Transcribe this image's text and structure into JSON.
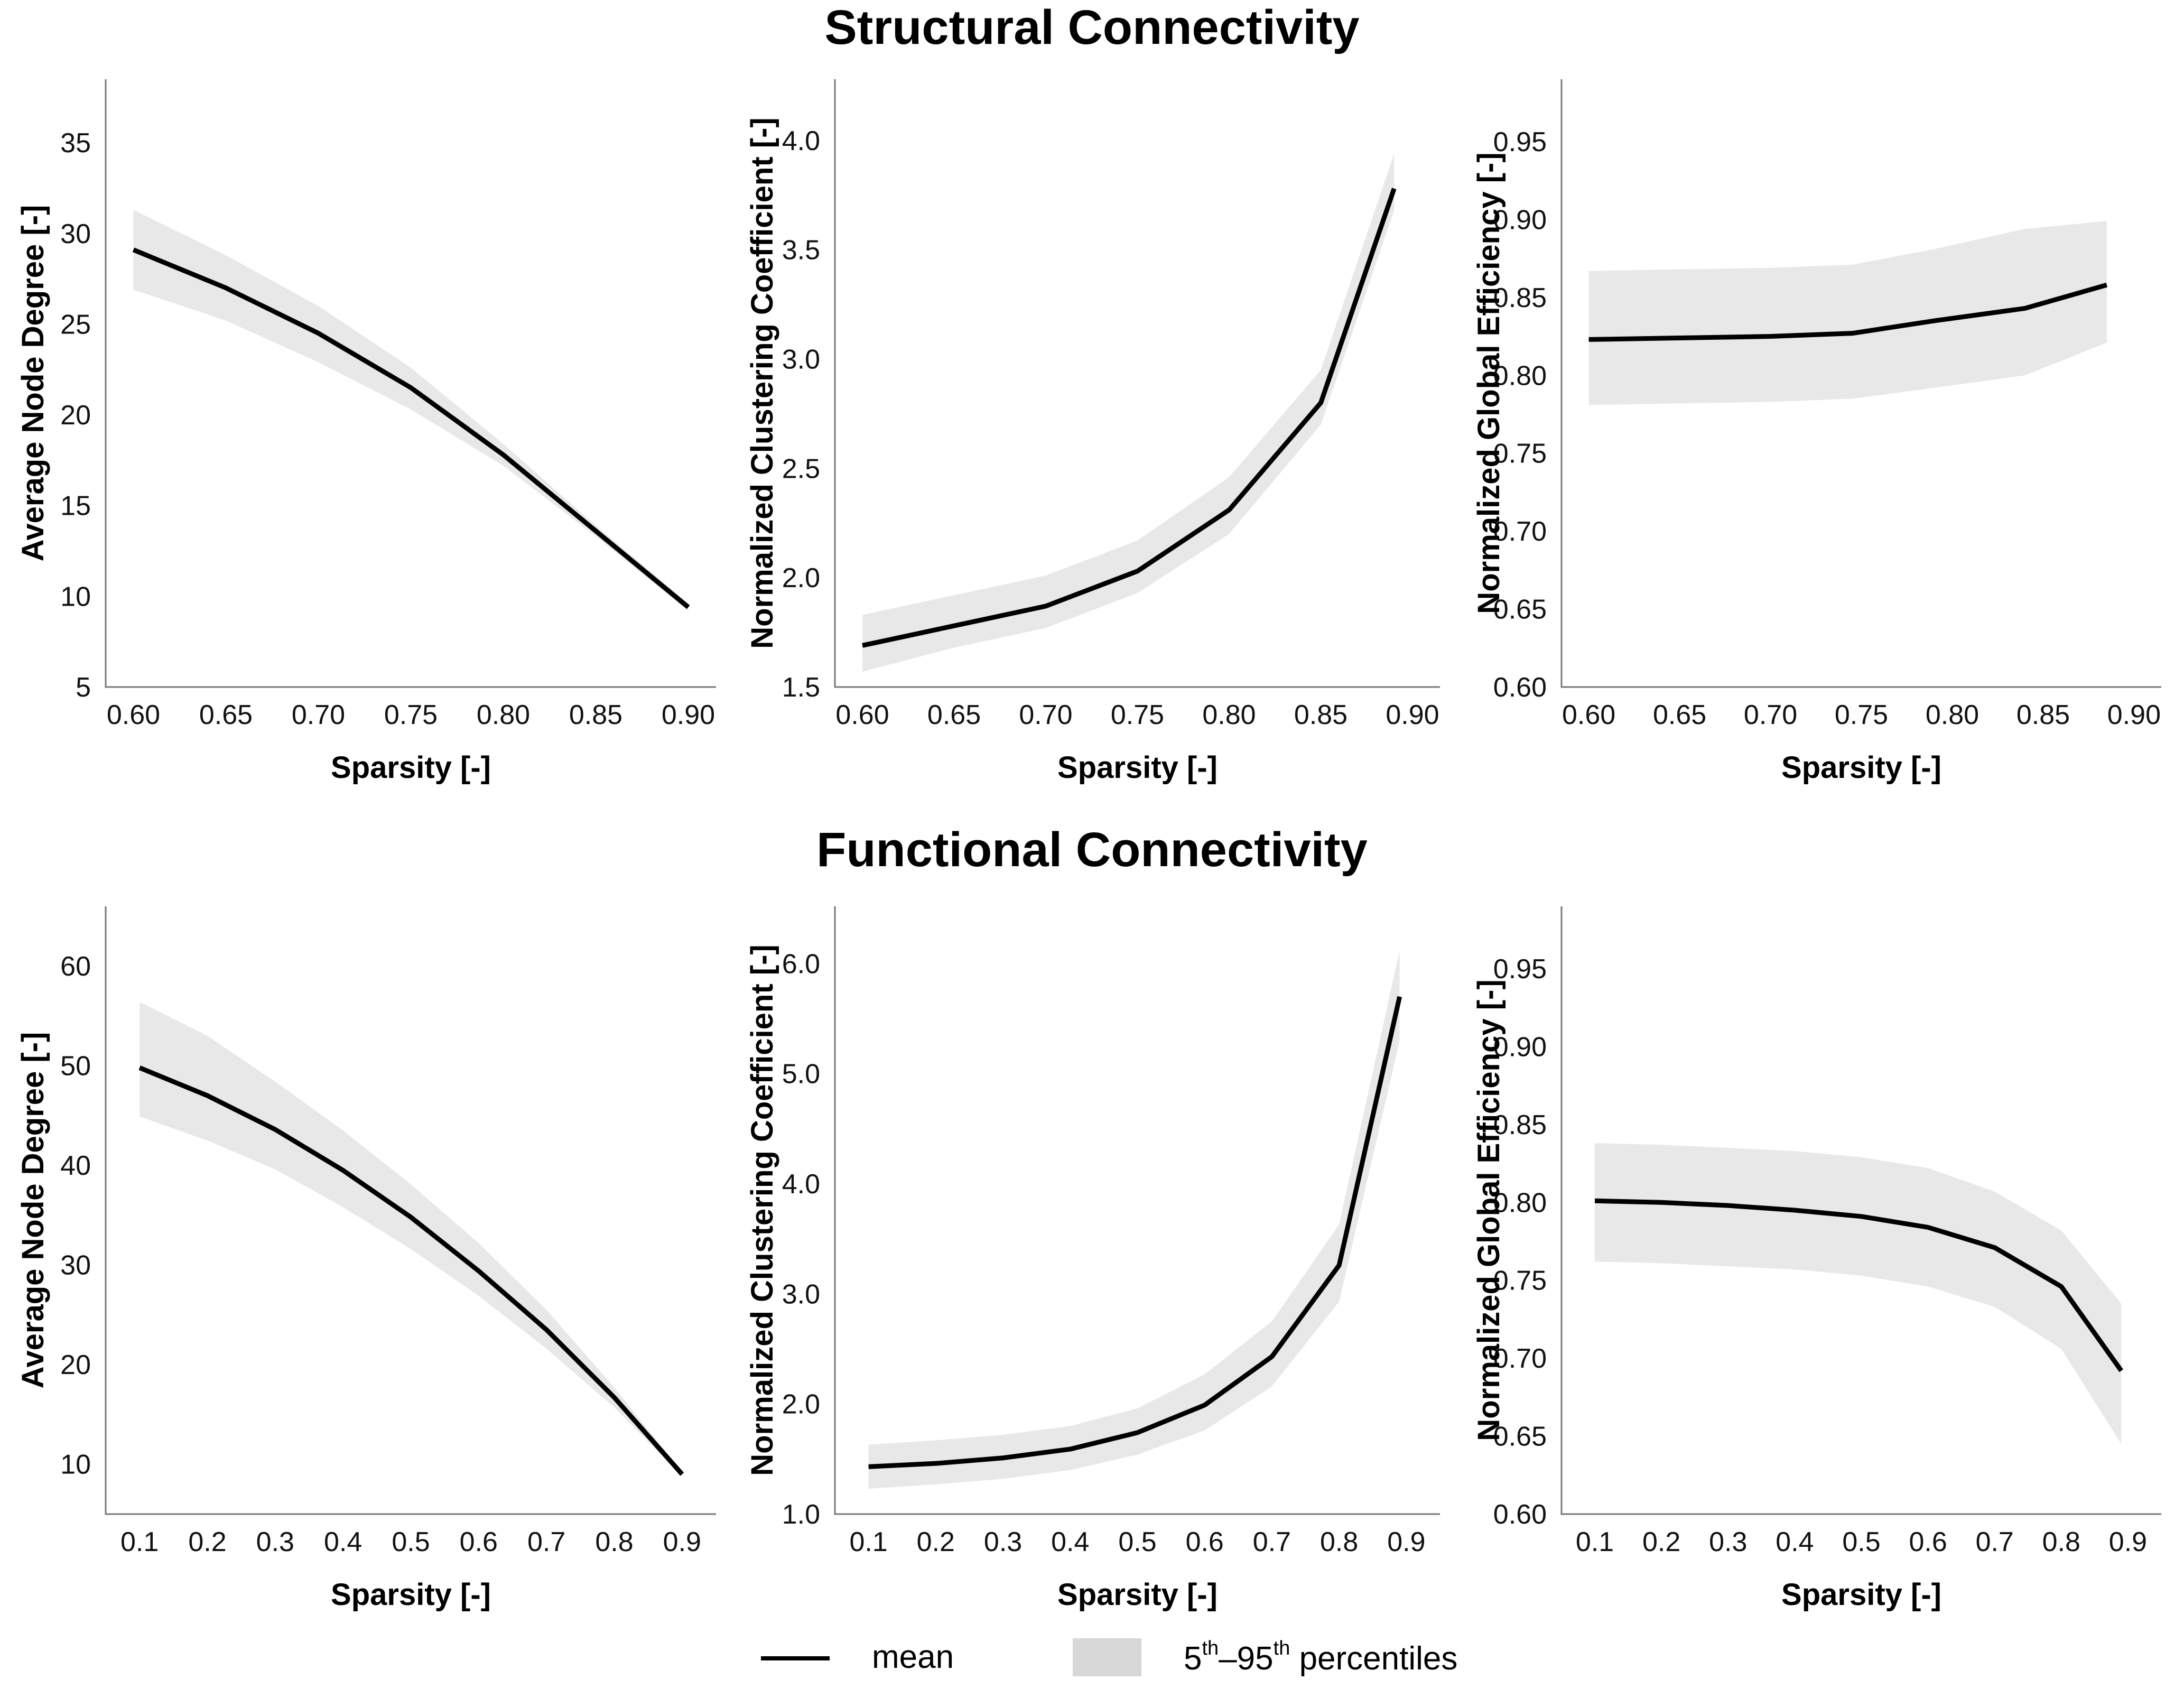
{
  "titles": {
    "structural": "Structural Connectivity",
    "functional": "Functional Connectivity"
  },
  "colors": {
    "mean_line": "#000000",
    "band_fill": "#e8e8e8",
    "axis": "#777777"
  },
  "legend": {
    "mean_label": "mean",
    "band_sup1": "th",
    "band_mid": "5",
    "band_dash": "–95",
    "band_sup2": "th",
    "band_tail": " percentiles"
  },
  "chart_data": [
    {
      "type": "area",
      "group": "structural",
      "xlabel": "Sparsity [-]",
      "ylabel": "Average Node Degree [-]",
      "xlim": [
        0.585,
        0.915
      ],
      "ylim": [
        5,
        38.5
      ],
      "xticks": [
        "0.60",
        "0.65",
        "0.70",
        "0.75",
        "0.80",
        "0.85",
        "0.90"
      ],
      "yticks": [
        "5",
        "10",
        "15",
        "20",
        "25",
        "30",
        "35"
      ],
      "x": [
        0.6,
        0.65,
        0.7,
        0.75,
        0.8,
        0.85,
        0.9
      ],
      "mean": [
        29.1,
        27.0,
        24.5,
        21.5,
        17.8,
        13.6,
        9.4
      ],
      "lower": [
        26.9,
        25.2,
        22.9,
        20.3,
        17.2,
        13.3,
        9.2
      ],
      "upper": [
        31.3,
        28.8,
        26.0,
        22.6,
        18.4,
        13.9,
        9.6
      ]
    },
    {
      "type": "area",
      "group": "structural",
      "xlabel": "Sparsity [-]",
      "ylabel": "Normalized Clustering Coefficient [-]",
      "xlim": [
        0.585,
        0.915
      ],
      "ylim": [
        1.5,
        4.28
      ],
      "xticks": [
        "0.60",
        "0.65",
        "0.70",
        "0.75",
        "0.80",
        "0.85",
        "0.90"
      ],
      "yticks": [
        "1.5",
        "2.0",
        "2.5",
        "3.0",
        "3.5",
        "4.0"
      ],
      "x": [
        0.6,
        0.65,
        0.7,
        0.75,
        0.8,
        0.85,
        0.89
      ],
      "mean": [
        1.69,
        1.78,
        1.87,
        2.03,
        2.31,
        2.8,
        3.78
      ],
      "lower": [
        1.57,
        1.68,
        1.77,
        1.93,
        2.2,
        2.7,
        3.68
      ],
      "upper": [
        1.83,
        1.92,
        2.01,
        2.17,
        2.46,
        2.95,
        3.94
      ]
    },
    {
      "type": "area",
      "group": "structural",
      "xlabel": "Sparsity [-]",
      "ylabel": "Normalized Global Efficiency [-]",
      "xlim": [
        0.585,
        0.915
      ],
      "ylim": [
        0.6,
        0.99
      ],
      "xticks": [
        "0.60",
        "0.65",
        "0.70",
        "0.75",
        "0.80",
        "0.85",
        "0.90"
      ],
      "yticks": [
        "0.60",
        "0.65",
        "0.70",
        "0.75",
        "0.80",
        "0.85",
        "0.90",
        "0.95"
      ],
      "x": [
        0.6,
        0.65,
        0.7,
        0.745,
        0.79,
        0.84,
        0.885
      ],
      "mean": [
        0.823,
        0.824,
        0.825,
        0.827,
        0.835,
        0.843,
        0.858
      ],
      "lower": [
        0.781,
        0.782,
        0.783,
        0.785,
        0.792,
        0.8,
        0.821
      ],
      "upper": [
        0.867,
        0.868,
        0.869,
        0.871,
        0.881,
        0.894,
        0.899
      ]
    },
    {
      "type": "area",
      "group": "functional",
      "xlabel": "Sparsity [-]",
      "ylabel": "Average Node Degree [-]",
      "xlim": [
        0.05,
        0.95
      ],
      "ylim": [
        5,
        66
      ],
      "xticks": [
        "0.1",
        "0.2",
        "0.3",
        "0.4",
        "0.5",
        "0.6",
        "0.7",
        "0.8",
        "0.9"
      ],
      "yticks": [
        "10",
        "20",
        "30",
        "40",
        "50",
        "60"
      ],
      "x": [
        0.1,
        0.2,
        0.3,
        0.4,
        0.5,
        0.6,
        0.7,
        0.8,
        0.9
      ],
      "mean": [
        49.8,
        47.0,
        43.6,
        39.5,
        34.8,
        29.4,
        23.5,
        16.7,
        9.0
      ],
      "lower": [
        44.9,
        42.5,
        39.6,
        35.8,
        31.6,
        26.9,
        21.6,
        15.7,
        8.8
      ],
      "upper": [
        56.4,
        53.0,
        48.4,
        43.5,
        38.1,
        32.2,
        25.5,
        17.7,
        9.2
      ]
    },
    {
      "type": "area",
      "group": "functional",
      "xlabel": "Sparsity [-]",
      "ylabel": "Normalized Clustering Coefficient [-]",
      "xlim": [
        0.05,
        0.95
      ],
      "ylim": [
        1.0,
        6.52
      ],
      "xticks": [
        "0.1",
        "0.2",
        "0.3",
        "0.4",
        "0.5",
        "0.6",
        "0.7",
        "0.8",
        "0.9"
      ],
      "yticks": [
        "1.0",
        "2.0",
        "3.0",
        "4.0",
        "5.0",
        "6.0"
      ],
      "x": [
        0.1,
        0.2,
        0.3,
        0.4,
        0.5,
        0.6,
        0.7,
        0.8,
        0.89
      ],
      "mean": [
        1.43,
        1.46,
        1.51,
        1.59,
        1.74,
        1.99,
        2.43,
        3.26,
        5.7
      ],
      "lower": [
        1.23,
        1.27,
        1.32,
        1.4,
        1.54,
        1.76,
        2.16,
        2.93,
        5.3
      ],
      "upper": [
        1.63,
        1.67,
        1.72,
        1.8,
        1.96,
        2.27,
        2.75,
        3.63,
        6.12
      ]
    },
    {
      "type": "area",
      "group": "functional",
      "xlabel": "Sparsity [-]",
      "ylabel": "Normalized Global Efficiency [-]",
      "xlim": [
        0.05,
        0.95
      ],
      "ylim": [
        0.6,
        0.99
      ],
      "xticks": [
        "0.1",
        "0.2",
        "0.3",
        "0.4",
        "0.5",
        "0.6",
        "0.7",
        "0.8",
        "0.9"
      ],
      "yticks": [
        "0.60",
        "0.65",
        "0.70",
        "0.75",
        "0.80",
        "0.85",
        "0.90",
        "0.95"
      ],
      "x": [
        0.1,
        0.2,
        0.3,
        0.4,
        0.5,
        0.6,
        0.7,
        0.8,
        0.89
      ],
      "mean": [
        0.801,
        0.8,
        0.798,
        0.795,
        0.791,
        0.784,
        0.771,
        0.746,
        0.692
      ],
      "lower": [
        0.762,
        0.761,
        0.759,
        0.757,
        0.753,
        0.746,
        0.733,
        0.706,
        0.645
      ],
      "upper": [
        0.838,
        0.837,
        0.835,
        0.833,
        0.829,
        0.822,
        0.807,
        0.782,
        0.735
      ]
    }
  ]
}
